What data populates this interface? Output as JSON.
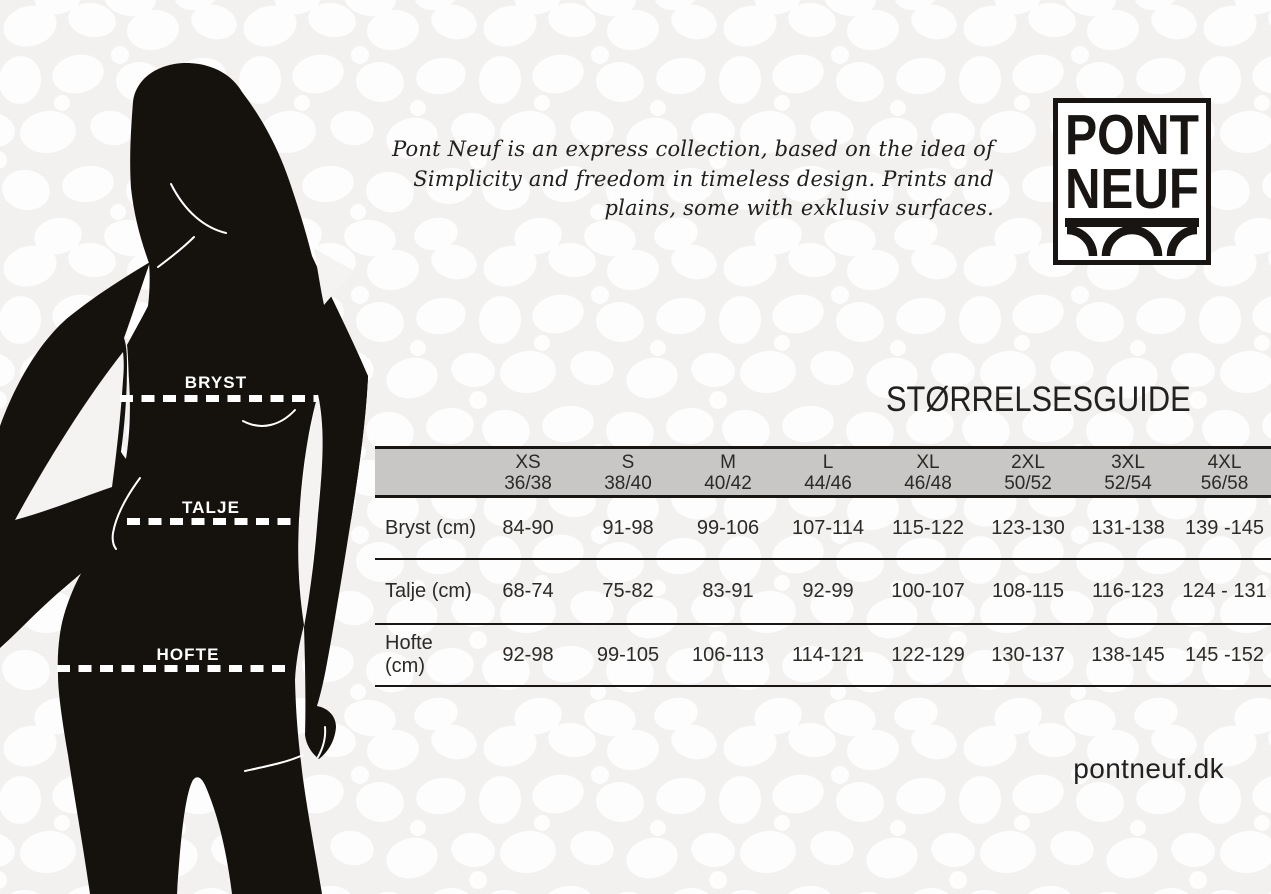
{
  "brand": {
    "logo_line1": "PONT",
    "logo_line2": "NEUF",
    "website": "pontneuf.dk"
  },
  "intro": {
    "line1": "Pont Neuf is an express collection, based on the idea of",
    "line2": "Simplicity and freedom in timeless design. Prints and",
    "line3": "plains, some with exklusiv surfaces."
  },
  "figure": {
    "measurements": [
      {
        "label": "BRYST"
      },
      {
        "label": "TALJE"
      },
      {
        "label": "HOFTE"
      }
    ]
  },
  "size_guide": {
    "title": "STØRRELSESGUIDE",
    "columns": [
      {
        "size": "XS",
        "eu": "36/38"
      },
      {
        "size": "S",
        "eu": "38/40"
      },
      {
        "size": "M",
        "eu": "40/42"
      },
      {
        "size": "L",
        "eu": "44/46"
      },
      {
        "size": "XL",
        "eu": "46/48"
      },
      {
        "size": "2XL",
        "eu": "50/52"
      },
      {
        "size": "3XL",
        "eu": "52/54"
      },
      {
        "size": "4XL",
        "eu": "56/58"
      }
    ],
    "rows": [
      {
        "label": "Bryst (cm)",
        "values": [
          "84-90",
          "91-98",
          "99-106",
          "107-114",
          "115-122",
          "123-130",
          "131-138",
          "139 -145"
        ]
      },
      {
        "label": "Talje (cm)",
        "values": [
          "68-74",
          "75-82",
          "83-91",
          "92-99",
          "100-107",
          "108-115",
          "116-123",
          "124 - 131"
        ]
      },
      {
        "label": "Hofte (cm)",
        "values": [
          "92-98",
          "99-105",
          "106-113",
          "114-121",
          "122-129",
          "130-137",
          "138-145",
          "145 -152"
        ]
      }
    ]
  },
  "colors": {
    "silhouette_black": "#15120e",
    "header_gray": "#c8c7c5",
    "pattern_gray": "#f0efed"
  }
}
